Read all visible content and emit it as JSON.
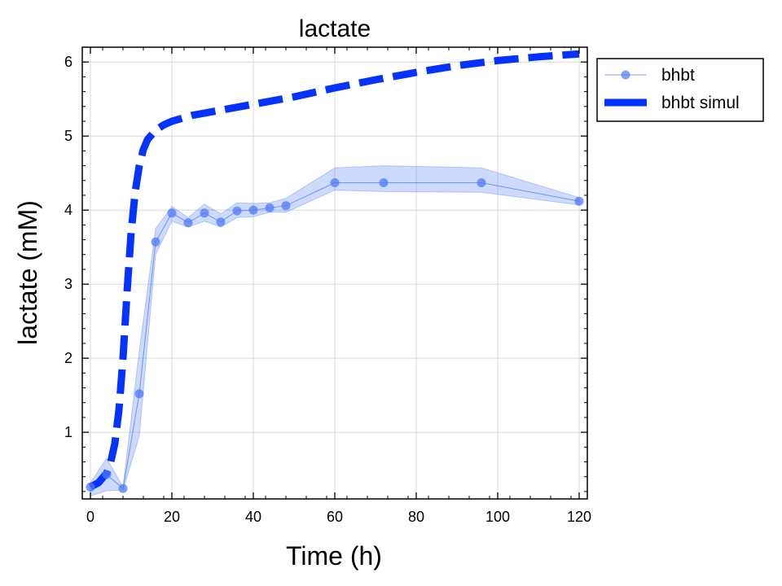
{
  "chart_data": {
    "type": "line",
    "title": "lactate",
    "xlabel": "Time (h)",
    "ylabel": "lactate (mM)",
    "xlim": [
      -2,
      122
    ],
    "ylim": [
      0.1,
      6.2
    ],
    "xticks": [
      0,
      20,
      40,
      60,
      80,
      100,
      120
    ],
    "yticks": [
      1,
      2,
      3,
      4,
      5,
      6
    ],
    "grid": true,
    "legend_position": "outside-top-right",
    "series": [
      {
        "name": "bhbt",
        "style": "markers-line",
        "color": "#4d79f5",
        "x": [
          0,
          4,
          8,
          12,
          16,
          20,
          24,
          28,
          32,
          36,
          40,
          44,
          48,
          60,
          72,
          96,
          120
        ],
        "y": [
          0.26,
          0.43,
          0.24,
          1.52,
          3.57,
          3.96,
          3.83,
          3.96,
          3.84,
          3.99,
          4.0,
          4.03,
          4.06,
          4.37,
          4.37,
          4.37,
          4.12
        ],
        "band_upper": [
          0.32,
          0.65,
          0.26,
          2.1,
          3.75,
          4.05,
          3.9,
          4.08,
          3.95,
          4.1,
          4.09,
          4.1,
          4.16,
          4.57,
          4.6,
          4.57,
          4.17
        ],
        "band_lower": [
          0.14,
          0.21,
          0.22,
          0.95,
          3.4,
          3.85,
          3.77,
          3.85,
          3.77,
          3.9,
          3.91,
          3.97,
          3.97,
          4.27,
          4.25,
          4.24,
          4.07
        ]
      },
      {
        "name": "bhbt simul",
        "style": "dashed-line",
        "color": "#0433ff",
        "x": [
          0,
          2,
          4,
          5,
          6,
          7,
          8,
          9,
          10,
          11,
          12,
          13,
          14,
          16,
          18,
          20,
          25,
          30,
          40,
          50,
          60,
          70,
          80,
          90,
          100,
          110,
          120
        ],
        "y": [
          0.26,
          0.32,
          0.45,
          0.6,
          0.85,
          1.3,
          2.0,
          2.9,
          3.7,
          4.25,
          4.6,
          4.82,
          4.95,
          5.08,
          5.15,
          5.2,
          5.28,
          5.33,
          5.43,
          5.53,
          5.65,
          5.76,
          5.86,
          5.95,
          6.02,
          6.07,
          6.11
        ]
      }
    ]
  }
}
